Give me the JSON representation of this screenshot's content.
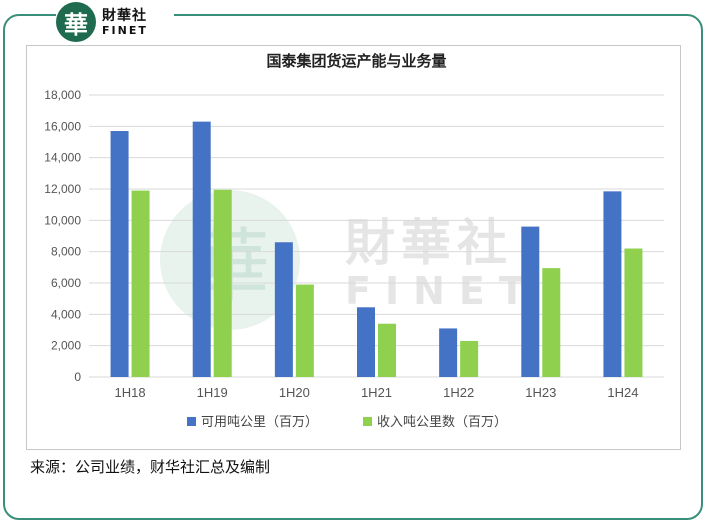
{
  "logo": {
    "mark": "華",
    "cn": "財華社",
    "en": "FINET"
  },
  "watermark": {
    "mark": "華",
    "cn": "財華社",
    "en": "FINET"
  },
  "source_note": "来源：公司业绩，财华社汇总及编制",
  "colors": {
    "frame": "#3a8f7a",
    "series1": "#4472c4",
    "series2": "#8fd14f",
    "grid": "#d9d9d9"
  },
  "chart_data": {
    "type": "bar",
    "title": "国泰集团货运产能与业务量",
    "categories": [
      "1H18",
      "1H19",
      "1H20",
      "1H21",
      "1H22",
      "1H23",
      "1H24"
    ],
    "series": [
      {
        "name": "可用吨公里（百万）",
        "values": [
          15700,
          16300,
          8600,
          4450,
          3100,
          9600,
          11850
        ]
      },
      {
        "name": "收入吨公里数（百万）",
        "values": [
          11900,
          11950,
          5900,
          3400,
          2300,
          6950,
          8200
        ]
      }
    ],
    "ylim": [
      0,
      18000
    ],
    "yticks": [
      0,
      2000,
      4000,
      6000,
      8000,
      10000,
      12000,
      14000,
      16000,
      18000
    ],
    "ytick_labels": [
      "0",
      "2,000",
      "4,000",
      "6,000",
      "8,000",
      "10,000",
      "12,000",
      "14,000",
      "16,000",
      "18,000"
    ],
    "grid": true,
    "legend": "bottom"
  }
}
